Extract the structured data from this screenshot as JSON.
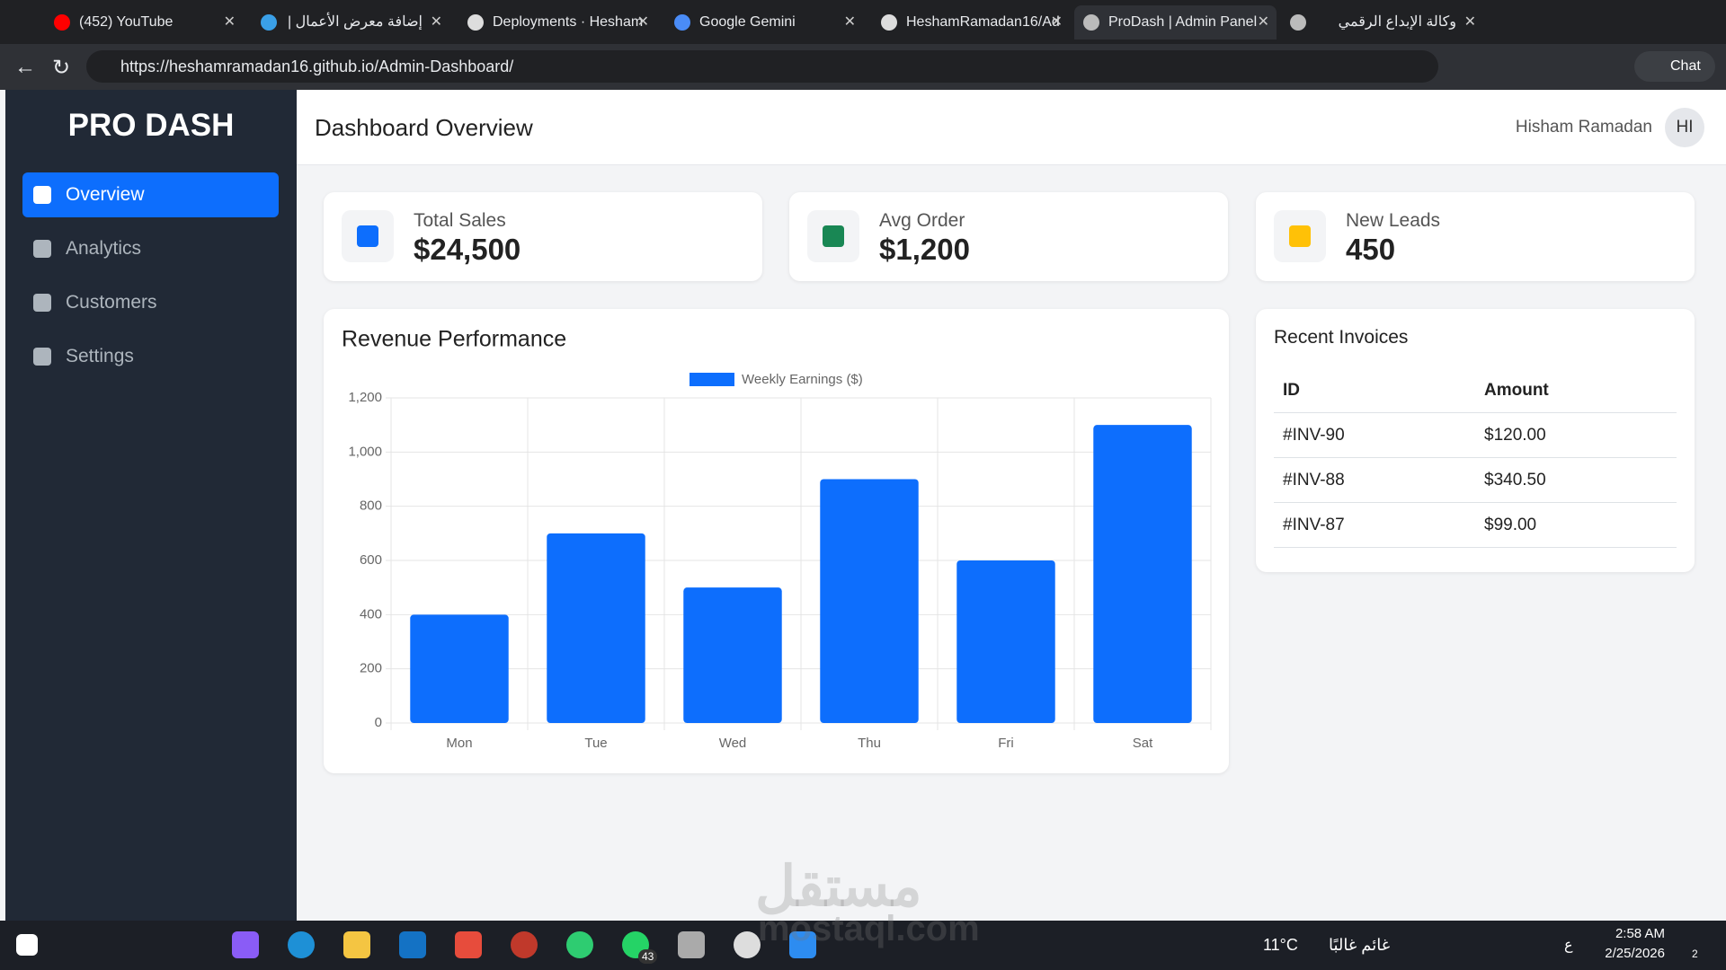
{
  "browser": {
    "tabs": [
      "(452) YouTube",
      "إضافة معرض الأعمال | م",
      "Deployments · Hesham",
      "Google Gemini",
      "HeshamRamadan16/Ad",
      "ProDash | Admin Panel",
      "وكالة الإبداع الرقمي"
    ],
    "address": "https://heshamramadan16.github.io/Admin-Dashboard/",
    "chat": "Chat"
  },
  "sidebar": {
    "brand": "PRO DASH",
    "nav": [
      "Overview",
      "Analytics",
      "Customers",
      "Settings"
    ]
  },
  "header": {
    "title": "Dashboard Overview",
    "user": "Hisham Ramadan",
    "avatar": "HI"
  },
  "cards": [
    {
      "label": "Total Sales",
      "value": "$24,500"
    },
    {
      "label": "Avg Order",
      "value": "$1,200"
    },
    {
      "label": "New Leads",
      "value": "450"
    }
  ],
  "chart_data": {
    "type": "bar",
    "title": "Revenue Performance",
    "categories": [
      "Mon",
      "Tue",
      "Wed",
      "Thu",
      "Fri",
      "Sat"
    ],
    "series": [
      {
        "name": "Weekly Earnings ($)",
        "color": "#0d6efd",
        "values": [
          400,
          700,
          500,
          900,
          600,
          1100
        ]
      }
    ],
    "ylim": [
      0,
      1200
    ],
    "yticks": [
      0,
      200,
      400,
      600,
      800,
      {
        "value": 1000,
        "label": "1,000"
      },
      {
        "value": 1200,
        "label": "1,200"
      }
    ],
    "grid": true
  },
  "invoices": {
    "title": "Recent Invoices",
    "columns": [
      "ID",
      "Amount"
    ],
    "rows": [
      [
        "#INV-90",
        "$120.00"
      ],
      [
        "#INV-88",
        "$340.50"
      ],
      [
        "#INV-87",
        "$99.00"
      ]
    ]
  },
  "watermark": {
    "arabic": "مستقل",
    "latin": "mostaql.com"
  },
  "taskbar": {
    "temperature": "11°C",
    "weather": "غائم غالبًا",
    "language": "ع",
    "time": "2:58 AM",
    "date": "2/25/2026",
    "whatsapp_badge": "43",
    "notifications": "2"
  }
}
